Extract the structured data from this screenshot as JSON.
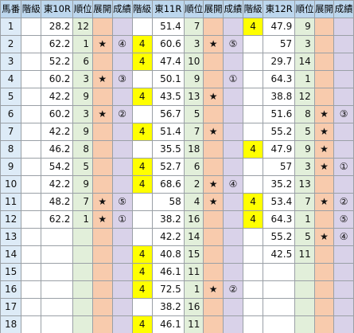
{
  "header": {
    "cols": [
      "馬番",
      "階級",
      "東10R",
      "順位",
      "展開",
      "成績",
      "階級",
      "東11R",
      "順位",
      "展開",
      "成績",
      "階級",
      "東12R",
      "順位",
      "展開",
      "成績"
    ]
  },
  "colors": {
    "header_bg": "#bdd7ee",
    "number_bg": "#ddebf7",
    "level_highlight": "#ffff00",
    "rank_bg": "#e2efda",
    "tenkai_bg": "#f8cbad",
    "seiseki_bg": "#d9d2e9",
    "grid": "#9aa0a6"
  },
  "rows": [
    {
      "num": "1",
      "r10": {
        "lvl": "",
        "pop": "28.2",
        "rank": "12",
        "dev": "",
        "res": ""
      },
      "r11": {
        "lvl": "",
        "pop": "51.4",
        "rank": "7",
        "dev": "",
        "res": ""
      },
      "r12": {
        "lvl": "4",
        "pop": "47.9",
        "rank": "9",
        "dev": "",
        "res": ""
      }
    },
    {
      "num": "2",
      "r10": {
        "lvl": "",
        "pop": "62.2",
        "rank": "1",
        "dev": "★",
        "res": "④"
      },
      "r11": {
        "lvl": "4",
        "pop": "60.6",
        "rank": "3",
        "dev": "★",
        "res": "⑤"
      },
      "r12": {
        "lvl": "",
        "pop": "57",
        "rank": "3",
        "dev": "",
        "res": ""
      }
    },
    {
      "num": "3",
      "r10": {
        "lvl": "",
        "pop": "52.2",
        "rank": "6",
        "dev": "",
        "res": ""
      },
      "r11": {
        "lvl": "4",
        "pop": "47.4",
        "rank": "10",
        "dev": "",
        "res": ""
      },
      "r12": {
        "lvl": "",
        "pop": "29.7",
        "rank": "14",
        "dev": "",
        "res": ""
      }
    },
    {
      "num": "4",
      "r10": {
        "lvl": "",
        "pop": "60.2",
        "rank": "3",
        "dev": "★",
        "res": "③"
      },
      "r11": {
        "lvl": "",
        "pop": "50.1",
        "rank": "9",
        "dev": "",
        "res": "①"
      },
      "r12": {
        "lvl": "",
        "pop": "64.3",
        "rank": "1",
        "dev": "",
        "res": ""
      }
    },
    {
      "num": "5",
      "r10": {
        "lvl": "",
        "pop": "42.2",
        "rank": "9",
        "dev": "",
        "res": ""
      },
      "r11": {
        "lvl": "4",
        "pop": "43.5",
        "rank": "13",
        "dev": "★",
        "res": ""
      },
      "r12": {
        "lvl": "",
        "pop": "38.8",
        "rank": "12",
        "dev": "",
        "res": ""
      }
    },
    {
      "num": "6",
      "r10": {
        "lvl": "",
        "pop": "60.2",
        "rank": "3",
        "dev": "★",
        "res": "②"
      },
      "r11": {
        "lvl": "",
        "pop": "56.7",
        "rank": "5",
        "dev": "",
        "res": ""
      },
      "r12": {
        "lvl": "",
        "pop": "51.6",
        "rank": "8",
        "dev": "★",
        "res": "③"
      }
    },
    {
      "num": "7",
      "r10": {
        "lvl": "",
        "pop": "42.2",
        "rank": "9",
        "dev": "",
        "res": ""
      },
      "r11": {
        "lvl": "4",
        "pop": "51.4",
        "rank": "7",
        "dev": "★",
        "res": ""
      },
      "r12": {
        "lvl": "",
        "pop": "55.2",
        "rank": "5",
        "dev": "★",
        "res": ""
      }
    },
    {
      "num": "8",
      "r10": {
        "lvl": "",
        "pop": "46.2",
        "rank": "8",
        "dev": "",
        "res": ""
      },
      "r11": {
        "lvl": "",
        "pop": "35.5",
        "rank": "18",
        "dev": "",
        "res": ""
      },
      "r12": {
        "lvl": "4",
        "pop": "47.9",
        "rank": "9",
        "dev": "★",
        "res": ""
      }
    },
    {
      "num": "9",
      "r10": {
        "lvl": "",
        "pop": "54.2",
        "rank": "5",
        "dev": "",
        "res": ""
      },
      "r11": {
        "lvl": "4",
        "pop": "52.7",
        "rank": "6",
        "dev": "",
        "res": ""
      },
      "r12": {
        "lvl": "",
        "pop": "57",
        "rank": "3",
        "dev": "★",
        "res": "①"
      }
    },
    {
      "num": "10",
      "r10": {
        "lvl": "",
        "pop": "42.2",
        "rank": "9",
        "dev": "",
        "res": ""
      },
      "r11": {
        "lvl": "4",
        "pop": "68.6",
        "rank": "2",
        "dev": "★",
        "res": "④"
      },
      "r12": {
        "lvl": "",
        "pop": "35.2",
        "rank": "13",
        "dev": "",
        "res": ""
      }
    },
    {
      "num": "11",
      "r10": {
        "lvl": "",
        "pop": "48.2",
        "rank": "7",
        "dev": "★",
        "res": "⑤"
      },
      "r11": {
        "lvl": "",
        "pop": "58",
        "rank": "4",
        "dev": "★",
        "res": ""
      },
      "r12": {
        "lvl": "4",
        "pop": "53.4",
        "rank": "7",
        "dev": "★",
        "res": "②"
      }
    },
    {
      "num": "12",
      "r10": {
        "lvl": "",
        "pop": "62.2",
        "rank": "1",
        "dev": "★",
        "res": "①"
      },
      "r11": {
        "lvl": "",
        "pop": "38.2",
        "rank": "16",
        "dev": "",
        "res": ""
      },
      "r12": {
        "lvl": "4",
        "pop": "64.3",
        "rank": "1",
        "dev": "",
        "res": "⑤"
      }
    },
    {
      "num": "13",
      "r10": {
        "lvl": "",
        "pop": "",
        "rank": "",
        "dev": "",
        "res": ""
      },
      "r11": {
        "lvl": "",
        "pop": "42.2",
        "rank": "14",
        "dev": "",
        "res": ""
      },
      "r12": {
        "lvl": "",
        "pop": "55.2",
        "rank": "5",
        "dev": "★",
        "res": "④"
      }
    },
    {
      "num": "14",
      "r10": {
        "lvl": "",
        "pop": "",
        "rank": "",
        "dev": "",
        "res": ""
      },
      "r11": {
        "lvl": "4",
        "pop": "40.8",
        "rank": "15",
        "dev": "",
        "res": ""
      },
      "r12": {
        "lvl": "",
        "pop": "42.5",
        "rank": "11",
        "dev": "",
        "res": ""
      }
    },
    {
      "num": "15",
      "r10": {
        "lvl": "",
        "pop": "",
        "rank": "",
        "dev": "",
        "res": ""
      },
      "r11": {
        "lvl": "4",
        "pop": "46.1",
        "rank": "11",
        "dev": "",
        "res": ""
      },
      "r12": {
        "lvl": "",
        "pop": "",
        "rank": "",
        "dev": "",
        "res": ""
      }
    },
    {
      "num": "16",
      "r10": {
        "lvl": "",
        "pop": "",
        "rank": "",
        "dev": "",
        "res": ""
      },
      "r11": {
        "lvl": "4",
        "pop": "72.5",
        "rank": "1",
        "dev": "★",
        "res": "②"
      },
      "r12": {
        "lvl": "",
        "pop": "",
        "rank": "",
        "dev": "",
        "res": ""
      }
    },
    {
      "num": "17",
      "r10": {
        "lvl": "",
        "pop": "",
        "rank": "",
        "dev": "",
        "res": ""
      },
      "r11": {
        "lvl": "",
        "pop": "38.2",
        "rank": "16",
        "dev": "",
        "res": ""
      },
      "r12": {
        "lvl": "",
        "pop": "",
        "rank": "",
        "dev": "",
        "res": ""
      }
    },
    {
      "num": "18",
      "r10": {
        "lvl": "",
        "pop": "",
        "rank": "",
        "dev": "",
        "res": ""
      },
      "r11": {
        "lvl": "4",
        "pop": "46.1",
        "rank": "11",
        "dev": "",
        "res": ""
      },
      "r12": {
        "lvl": "",
        "pop": "",
        "rank": "",
        "dev": "",
        "res": ""
      }
    }
  ]
}
